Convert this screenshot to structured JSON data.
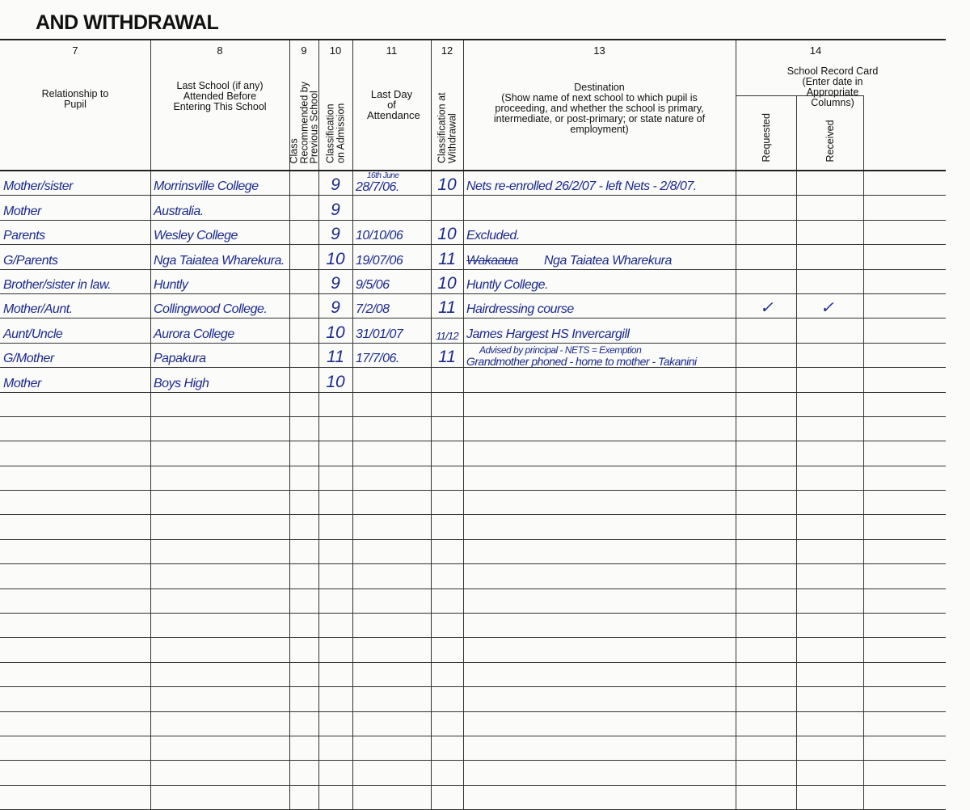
{
  "title": "AND WITHDRAWAL",
  "columns": {
    "c7": {
      "num": "7",
      "label": "Relationship to Pupil"
    },
    "c8": {
      "num": "8",
      "label": "Last School (if any) Attended Before Entering This School"
    },
    "c9": {
      "num": "9",
      "label": "Class Recommended by Previous School"
    },
    "c10": {
      "num": "10",
      "label": "Classification on Admission"
    },
    "c11": {
      "num": "11",
      "label": "Last Day of Attendance"
    },
    "c12": {
      "num": "12",
      "label": "Classification at Withdrawal"
    },
    "c13": {
      "num": "13",
      "label_title": "Destination",
      "label": "(Show name of next school to which pupil is proceeding, and whether the school is primary, intermediate, or post-primary; or state nature of employment)"
    },
    "c14": {
      "num": "14",
      "label": "School Record Card (Enter date in Appropriate Columns)",
      "requested": "Requested",
      "received": "Received"
    }
  },
  "rows": [
    {
      "relationship": "Mother/sister",
      "last_school": "Morrinsville College",
      "class_rec": "",
      "class_adm": "9",
      "last_day_note": "16th June",
      "last_day": "28/7/06.",
      "class_wd": "10",
      "destination": "Nets re-enrolled 26/2/07 - left Nets - 2/8/07.",
      "requested": "",
      "received": "",
      "extra": ""
    },
    {
      "relationship": "Mother",
      "last_school": "Australia.",
      "class_rec": "",
      "class_adm": "9",
      "last_day": "",
      "class_wd": "",
      "destination": "",
      "requested": "",
      "received": ""
    },
    {
      "relationship": "Parents",
      "last_school": "Wesley College",
      "class_rec": "",
      "class_adm": "9",
      "last_day": "10/10/06",
      "class_wd": "10",
      "destination": "Excluded.",
      "requested": "",
      "received": ""
    },
    {
      "relationship": "G/Parents",
      "last_school": "Nga Taiatea Wharekura.",
      "class_rec": "",
      "class_adm": "10",
      "last_day": "19/07/06",
      "class_wd": "11",
      "destination_struck": "Wakaaua",
      "destination": "Nga Taiatea Wharekura",
      "requested": "",
      "received": ""
    },
    {
      "relationship": "Brother/sister in law.",
      "last_school": "Huntly",
      "class_rec": "",
      "class_adm": "9",
      "last_day": "9/5/06",
      "class_wd": "10",
      "destination": "Huntly College.",
      "requested": "",
      "received": ""
    },
    {
      "relationship": "Mother/Aunt.",
      "last_school": "Collingwood College.",
      "class_rec": "",
      "class_adm": "9",
      "last_day": "7/2/08",
      "class_wd": "11",
      "destination": "Hairdressing course",
      "requested": "✓",
      "received": "✓"
    },
    {
      "relationship": "Aunt/Uncle",
      "last_school": "Aurora College",
      "class_rec": "",
      "class_adm": "10",
      "last_day": "31/01/07",
      "class_wd": "11/12",
      "destination": "James Hargest HS Invercargill",
      "requested": "",
      "received": ""
    },
    {
      "relationship": "G/Mother",
      "last_school": "Papakura",
      "class_rec": "",
      "class_adm": "11",
      "last_day": "17/7/06.",
      "class_wd": "11",
      "destination_note": "Advised by principal - NETS = Exemption",
      "destination": "Grandmother phoned - home to mother - Takanini",
      "requested": "",
      "received": ""
    },
    {
      "relationship": "Mother",
      "last_school": "Boys High",
      "class_rec": "",
      "class_adm": "10",
      "last_day": "",
      "class_wd": "",
      "destination": "",
      "requested": "",
      "received": ""
    }
  ],
  "colors": {
    "ink": "#1b2a8c",
    "rule": "#333333",
    "paper": "#fbfbf9"
  }
}
